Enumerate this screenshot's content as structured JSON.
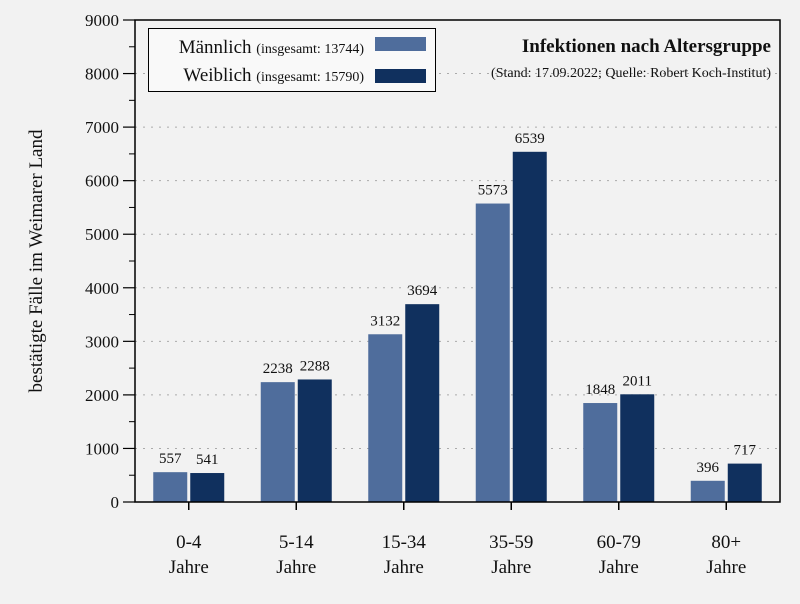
{
  "chart_data": {
    "type": "bar",
    "title": "Infektionen nach Altersgruppe",
    "subtitle": "(Stand: 17.09.2022; Quelle: Robert Koch-Institut)",
    "ylabel": "bestätigte Fälle im Weimarer Land",
    "xlabel": "",
    "ylim": [
      0,
      9000
    ],
    "yticks": [
      0,
      1000,
      2000,
      3000,
      4000,
      5000,
      6000,
      7000,
      8000,
      9000
    ],
    "grid": true,
    "legend_position": "top-left",
    "categories": [
      [
        "0-4",
        "Jahre"
      ],
      [
        "5-14",
        "Jahre"
      ],
      [
        "15-34",
        "Jahre"
      ],
      [
        "35-59",
        "Jahre"
      ],
      [
        "60-79",
        "Jahre"
      ],
      [
        "80+",
        "Jahre"
      ]
    ],
    "series": [
      {
        "name": "Männlich",
        "legend_note": "(insgesamt: 13744)",
        "color": "#4f6d9c",
        "values": [
          557,
          2238,
          3132,
          5573,
          1848,
          396
        ]
      },
      {
        "name": "Weiblich",
        "legend_note": "(insgesamt: 15790)",
        "color": "#10305e",
        "values": [
          541,
          2288,
          3694,
          6539,
          2011,
          717
        ]
      }
    ]
  }
}
